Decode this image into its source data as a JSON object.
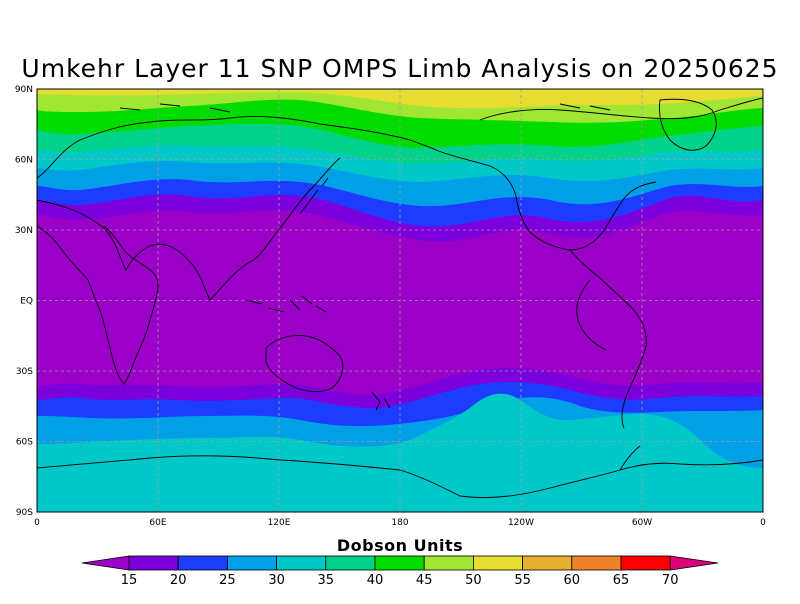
{
  "title": "Umkehr Layer 11 SNP OMPS Limb Analysis on 20250625",
  "lat_labels": [
    "90N",
    "60N",
    "30N",
    "EQ",
    "30S",
    "60S",
    "90S"
  ],
  "lon_labels": [
    "0",
    "60E",
    "120E",
    "180",
    "120W",
    "60W",
    "0"
  ],
  "colorbar": {
    "title": "Dobson Units",
    "ticks": [
      "15",
      "20",
      "25",
      "30",
      "35",
      "40",
      "45",
      "50",
      "55",
      "60",
      "65",
      "70"
    ],
    "colors": [
      "#9b00c8",
      "#7b00dc",
      "#1e3cff",
      "#00a0e6",
      "#00c8c8",
      "#00d28c",
      "#00dc00",
      "#a0e632",
      "#e6dc32",
      "#e6af2d",
      "#f08228",
      "#fa0000",
      "#dc007a"
    ]
  },
  "map": {
    "type": "filled-contour",
    "projection": "cylindrical-equidistant",
    "lon_range": [
      0,
      360
    ],
    "lat_range": [
      -90,
      90
    ],
    "variable": "ozone",
    "units": "Dobson Units"
  }
}
